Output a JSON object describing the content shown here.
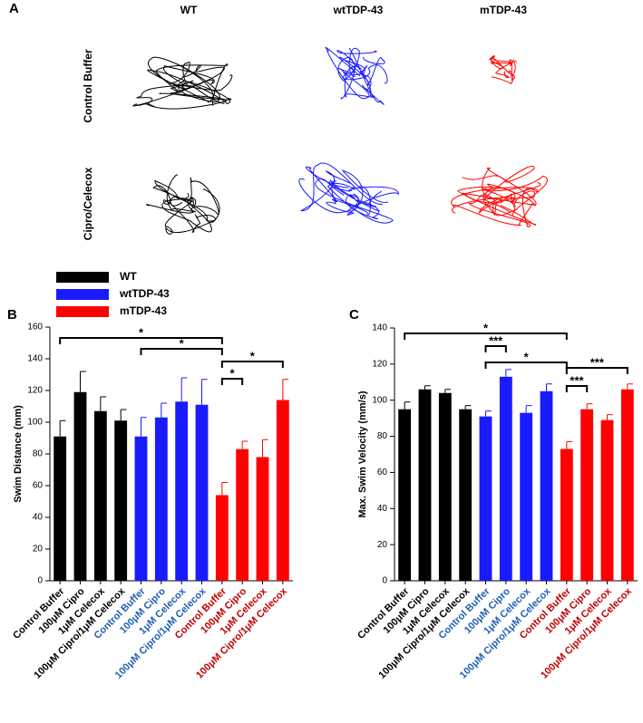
{
  "panel_a": {
    "letter": "A",
    "columns": [
      "WT",
      "wtTDP-43",
      "mTDP-43"
    ],
    "rows": [
      "Control Buffer",
      "Cipro/Celecox"
    ]
  },
  "chart_data": [
    {
      "type": "bar",
      "panel": "B",
      "y_label": "Swim Distance (mm)",
      "categories": [
        "Control Buffer",
        "100μM Cipro",
        "1μM Celecox",
        "100μM Cipro/1μM Celecox"
      ],
      "series": [
        {
          "name": "WT",
          "color": "#000000",
          "label_color": "#000000",
          "values": [
            91,
            119,
            107,
            101
          ],
          "errors": [
            10,
            13,
            9,
            7
          ]
        },
        {
          "name": "wtTDP-43",
          "color": "#1a1aff",
          "label_color": "#1f5fb0",
          "values": [
            91,
            103,
            113,
            111
          ],
          "errors": [
            12,
            9,
            15,
            16
          ]
        },
        {
          "name": "mTDP-43",
          "color": "#ff0000",
          "label_color": "#c00000",
          "values": [
            54,
            83,
            78,
            114
          ],
          "errors": [
            8,
            5,
            11,
            13
          ]
        }
      ],
      "ylim": [
        0,
        160
      ],
      "yticks": [
        0,
        20,
        40,
        60,
        80,
        100,
        120,
        140,
        160
      ],
      "brackets": [
        {
          "from": 0,
          "to": 8,
          "label": "*"
        },
        {
          "from": 4,
          "to": 8,
          "label": "*"
        },
        {
          "from": 8,
          "to": 11,
          "label": "*"
        },
        {
          "from": 8,
          "to": 9,
          "label": "*"
        }
      ]
    },
    {
      "type": "bar",
      "panel": "C",
      "y_label": "Max. Swim Velocity (mm/s)",
      "categories": [
        "Control Buffer",
        "100μM Cipro",
        "1μM Celecox",
        "100μM Cipro/1μM Celecox"
      ],
      "series": [
        {
          "color": "#000000",
          "label_color": "#000000",
          "values": [
            95,
            106,
            104,
            95
          ],
          "errors": [
            4,
            2,
            2,
            2
          ]
        },
        {
          "color": "#1a1aff",
          "label_color": "#1f5fb0",
          "values": [
            91,
            113,
            93,
            105
          ],
          "errors": [
            3,
            4,
            4,
            4
          ]
        },
        {
          "color": "#ff0000",
          "label_color": "#c00000",
          "values": [
            73,
            95,
            89,
            106
          ],
          "errors": [
            4,
            3,
            3,
            3
          ]
        }
      ],
      "ylim": [
        0,
        140
      ],
      "yticks": [
        0,
        20,
        40,
        60,
        80,
        100,
        120,
        140
      ],
      "brackets": [
        {
          "from": 0,
          "to": 8,
          "label": "*"
        },
        {
          "from": 4,
          "to": 5,
          "label": "***"
        },
        {
          "from": 4,
          "to": 8,
          "label": "*"
        },
        {
          "from": 8,
          "to": 11,
          "label": "***"
        },
        {
          "from": 8,
          "to": 9,
          "label": "***"
        }
      ]
    }
  ]
}
